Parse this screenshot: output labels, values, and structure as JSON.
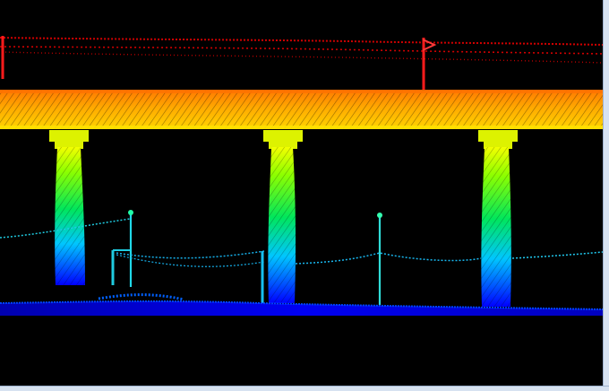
{
  "viewer": {
    "background": "#000000",
    "frame_color": "#d7e2f1",
    "color_ramp": [
      "#0000ff",
      "#00c8ff",
      "#00ff66",
      "#ffff00",
      "#ff8a00",
      "#ff0000"
    ],
    "points_visible": true
  },
  "scene": {
    "objects": [
      "overhead-line",
      "bridge-deck",
      "pier",
      "pier",
      "pier",
      "light-pole",
      "light-pole",
      "fence-wire",
      "ground"
    ]
  }
}
